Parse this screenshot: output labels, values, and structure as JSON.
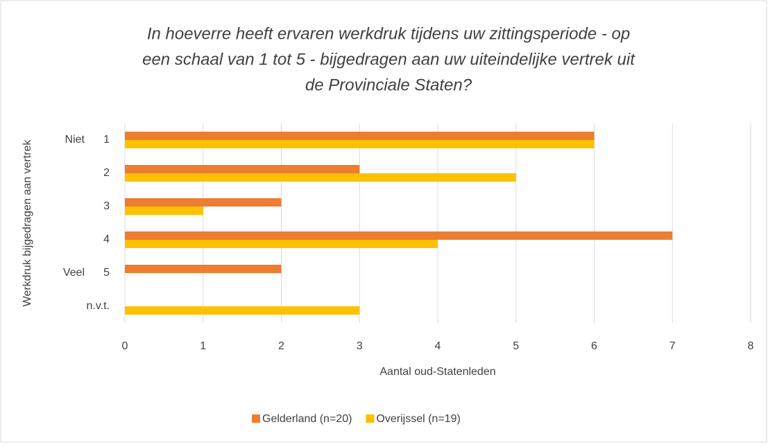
{
  "chart_data": {
    "type": "hbar",
    "title": [
      "In hoeverre heeft ervaren werkdruk tijdens uw zittingsperiode - op",
      "een schaal van 1 tot 5 - bijgedragen aan uw uiteindelijke vertrek uit",
      "de Provinciale Staten?"
    ],
    "x_label": "Aantal oud-Statenleden",
    "y_label": "Werkdruk bijgedragen aan vertrek",
    "categories": [
      "1",
      "2",
      "3",
      "4",
      "5",
      "n.v.t."
    ],
    "category_groups": [
      "Niet",
      null,
      null,
      null,
      "Veel",
      null
    ],
    "series": [
      {
        "name": "Gelderland (n=20)",
        "color": "#ed7d31",
        "values": [
          6,
          3,
          2,
          7,
          2,
          0
        ]
      },
      {
        "name": "Overijssel (n=19)",
        "color": "#ffc000",
        "values": [
          6,
          5,
          1,
          4,
          0,
          3
        ]
      }
    ],
    "xlim": [
      0,
      8
    ],
    "xticks": [
      0,
      1,
      2,
      3,
      4,
      5,
      6,
      7,
      8
    ],
    "grid": true,
    "legend": "bottom"
  }
}
